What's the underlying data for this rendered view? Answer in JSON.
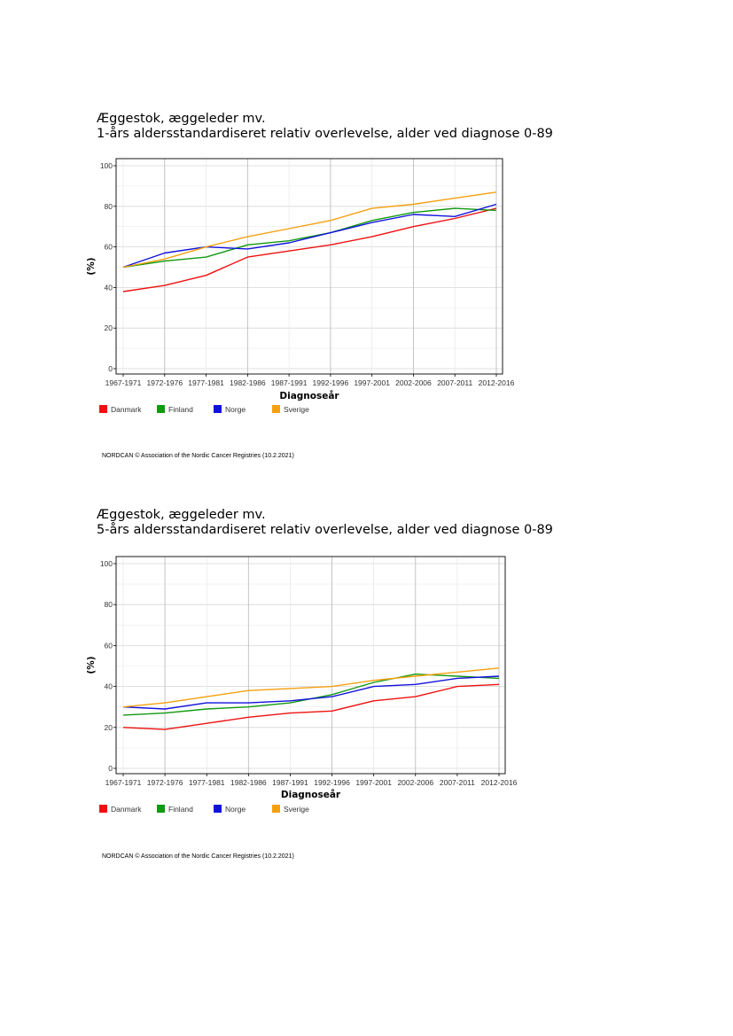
{
  "chart_data": [
    {
      "type": "line",
      "title": "Æggestok, æggeleder mv.",
      "subtitle": "1-års aldersstandardiseret relativ overlevelse, alder ved diagnose 0-89",
      "xlabel": "Diagnoseår",
      "ylabel": "(%)",
      "ylim": [
        0,
        100
      ],
      "yticks": [
        0,
        20,
        40,
        60,
        80,
        100
      ],
      "grid": true,
      "legend_position": "bottom-left",
      "categories": [
        "1967-1971",
        "1972-1976",
        "1977-1981",
        "1982-1986",
        "1987-1991",
        "1992-1996",
        "1997-2001",
        "2002-2006",
        "2007-2011",
        "2012-2016"
      ],
      "series": [
        {
          "name": "Danmark",
          "color": "#ee1111",
          "values": [
            38,
            41,
            46,
            55,
            58,
            61,
            65,
            70,
            74,
            79
          ]
        },
        {
          "name": "Finland",
          "color": "#119911",
          "values": [
            50,
            53,
            55,
            61,
            63,
            67,
            73,
            77,
            79,
            78
          ]
        },
        {
          "name": "Norge",
          "color": "#1111dd",
          "values": [
            50,
            57,
            60,
            59,
            62,
            67,
            72,
            76,
            75,
            81
          ]
        },
        {
          "name": "Sverige",
          "color": "#f5a010",
          "values": [
            50,
            54,
            60,
            65,
            69,
            73,
            79,
            81,
            84,
            87
          ]
        }
      ],
      "footer": "NORDCAN © Association of the Nordic Cancer Registries (10.2.2021)"
    },
    {
      "type": "line",
      "title": "Æggestok, æggeleder mv.",
      "subtitle": "5-års aldersstandardiseret relativ overlevelse, alder ved diagnose 0-89",
      "xlabel": "Diagnoseår",
      "ylabel": "(%)",
      "ylim": [
        0,
        100
      ],
      "yticks": [
        0,
        20,
        40,
        60,
        80,
        100
      ],
      "grid": true,
      "legend_position": "bottom-left",
      "categories": [
        "1967-1971",
        "1972-1976",
        "1977-1981",
        "1982-1986",
        "1987-1991",
        "1992-1996",
        "1997-2001",
        "2002-2006",
        "2007-2011",
        "2012-2016"
      ],
      "series": [
        {
          "name": "Danmark",
          "color": "#ee1111",
          "values": [
            20,
            19,
            22,
            25,
            27,
            28,
            33,
            35,
            40,
            41
          ]
        },
        {
          "name": "Finland",
          "color": "#119911",
          "values": [
            26,
            27,
            29,
            30,
            32,
            36,
            42,
            46,
            45,
            44
          ]
        },
        {
          "name": "Norge",
          "color": "#1111dd",
          "values": [
            30,
            29,
            32,
            32,
            33,
            35,
            40,
            41,
            44,
            45
          ]
        },
        {
          "name": "Sverige",
          "color": "#f5a010",
          "values": [
            30,
            32,
            35,
            38,
            39,
            40,
            43,
            45,
            47,
            49
          ]
        }
      ],
      "footer": "NORDCAN © Association of the Nordic Cancer Registries (10.2.2021)"
    }
  ]
}
